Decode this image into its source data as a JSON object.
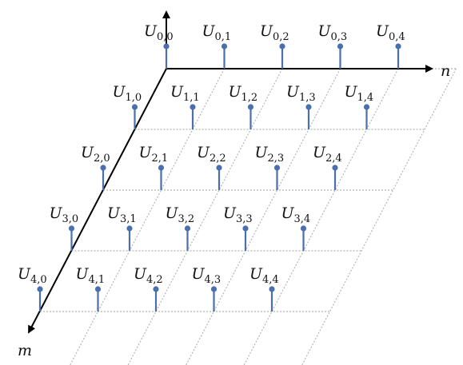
{
  "diagram": {
    "axis_labels": {
      "n": "n",
      "m": "m"
    },
    "rows": 5,
    "cols": 5,
    "stem_label_base": "U",
    "stems": [
      {
        "m": 0,
        "n": 0,
        "label_base": "U",
        "label_sub": "0,0"
      },
      {
        "m": 0,
        "n": 1,
        "label_base": "U",
        "label_sub": "0,1"
      },
      {
        "m": 0,
        "n": 2,
        "label_base": "U",
        "label_sub": "0,2"
      },
      {
        "m": 0,
        "n": 3,
        "label_base": "U",
        "label_sub": "0,3"
      },
      {
        "m": 0,
        "n": 4,
        "label_base": "U",
        "label_sub": "0,4"
      },
      {
        "m": 1,
        "n": 0,
        "label_base": "U",
        "label_sub": "1,0"
      },
      {
        "m": 1,
        "n": 1,
        "label_base": "U",
        "label_sub": "1,1"
      },
      {
        "m": 1,
        "n": 2,
        "label_base": "U",
        "label_sub": "1,2"
      },
      {
        "m": 1,
        "n": 3,
        "label_base": "U",
        "label_sub": "1,3"
      },
      {
        "m": 1,
        "n": 4,
        "label_base": "U",
        "label_sub": "1,4"
      },
      {
        "m": 2,
        "n": 0,
        "label_base": "U",
        "label_sub": "2,0"
      },
      {
        "m": 2,
        "n": 1,
        "label_base": "U",
        "label_sub": "2,1"
      },
      {
        "m": 2,
        "n": 2,
        "label_base": "U",
        "label_sub": "2,2"
      },
      {
        "m": 2,
        "n": 3,
        "label_base": "U",
        "label_sub": "2,3"
      },
      {
        "m": 2,
        "n": 4,
        "label_base": "U",
        "label_sub": "2,4"
      },
      {
        "m": 3,
        "n": 0,
        "label_base": "U",
        "label_sub": "3,0"
      },
      {
        "m": 3,
        "n": 1,
        "label_base": "U",
        "label_sub": "3,1"
      },
      {
        "m": 3,
        "n": 2,
        "label_base": "U",
        "label_sub": "3,2"
      },
      {
        "m": 3,
        "n": 3,
        "label_base": "U",
        "label_sub": "3,3"
      },
      {
        "m": 3,
        "n": 4,
        "label_base": "U",
        "label_sub": "3,4"
      },
      {
        "m": 4,
        "n": 0,
        "label_base": "U",
        "label_sub": "4,0"
      },
      {
        "m": 4,
        "n": 1,
        "label_base": "U",
        "label_sub": "4,1"
      },
      {
        "m": 4,
        "n": 2,
        "label_base": "U",
        "label_sub": "4,2"
      },
      {
        "m": 4,
        "n": 3,
        "label_base": "U",
        "label_sub": "4,3"
      },
      {
        "m": 4,
        "n": 4,
        "label_base": "U",
        "label_sub": "4,4"
      }
    ],
    "colors": {
      "stem": "#4a6fad",
      "axis": "#000000",
      "grid": "#b5b5b5",
      "text": "#111111"
    }
  }
}
